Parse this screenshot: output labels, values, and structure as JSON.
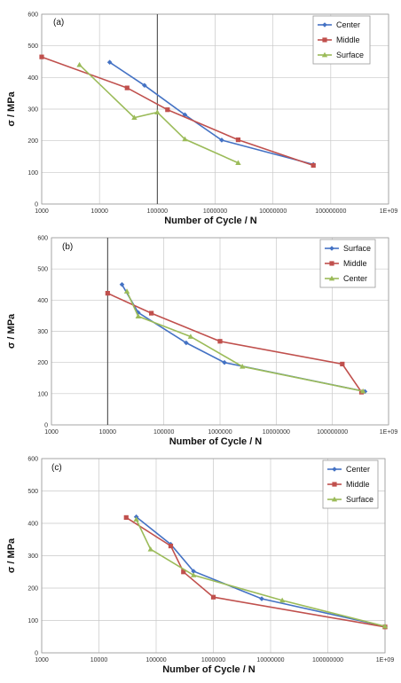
{
  "colors": {
    "blue": "#4472C4",
    "red": "#C0504D",
    "green": "#9BBB59"
  },
  "chart_data": [
    {
      "type": "line",
      "panel_label": "(a)",
      "xscale": "log",
      "xlim": [
        1000,
        1000000000
      ],
      "ylim": [
        0,
        600
      ],
      "x_tick_labels": [
        "1000",
        "10000",
        "100000",
        "1000000",
        "10000000",
        "100000000",
        "1E+09"
      ],
      "y_tick_labels": [
        "0",
        "100",
        "200",
        "300",
        "400",
        "500",
        "600"
      ],
      "xlabel": "Number of Cycle /  N",
      "ylabel": "σ  / MPa",
      "legend_position": "top-right",
      "series": [
        {
          "name": "Center",
          "color": "#4472C4",
          "marker": "diamond",
          "x": [
            15000,
            60000,
            300000,
            1300000,
            50000000
          ],
          "y": [
            448,
            375,
            282,
            202,
            125
          ]
        },
        {
          "name": "Middle",
          "color": "#C0504D",
          "marker": "square",
          "x": [
            1000,
            30000,
            150000,
            2500000,
            50000000
          ],
          "y": [
            465,
            367,
            298,
            203,
            122
          ]
        },
        {
          "name": "Surface",
          "color": "#9BBB59",
          "marker": "triangle",
          "x": [
            4500,
            40000,
            100000,
            300000,
            2500000
          ],
          "y": [
            440,
            273,
            290,
            205,
            130
          ]
        }
      ]
    },
    {
      "type": "line",
      "panel_label": "(b)",
      "xscale": "log",
      "xlim": [
        1000,
        1000000000
      ],
      "ylim": [
        0,
        600
      ],
      "x_tick_labels": [
        "1000",
        "10000",
        "100000",
        "1000000",
        "10000000",
        "100000000",
        "1E+09"
      ],
      "y_tick_labels": [
        "0",
        "100",
        "200",
        "300",
        "400",
        "500",
        "600"
      ],
      "xlabel": "Number of Cycle /  N",
      "ylabel": "σ  / MPa",
      "legend_position": "top-right",
      "series": [
        {
          "name": "Surface",
          "color": "#4472C4",
          "marker": "diamond",
          "x": [
            18000,
            35000,
            250000,
            1200000,
            380000000
          ],
          "y": [
            450,
            360,
            263,
            200,
            107
          ]
        },
        {
          "name": "Middle",
          "color": "#C0504D",
          "marker": "square",
          "x": [
            10000,
            60000,
            1000000,
            150000000,
            330000000
          ],
          "y": [
            422,
            358,
            268,
            195,
            105
          ]
        },
        {
          "name": "Center",
          "color": "#9BBB59",
          "marker": "triangle",
          "x": [
            22000,
            35000,
            300000,
            2500000,
            350000000
          ],
          "y": [
            428,
            348,
            283,
            187,
            108
          ]
        }
      ]
    },
    {
      "type": "line",
      "panel_label": "(c)",
      "xscale": "log",
      "xlim": [
        1000,
        1000000000
      ],
      "ylim": [
        0,
        600
      ],
      "x_tick_labels": [
        "1000",
        "10000",
        "100000",
        "1000000",
        "10000000",
        "100000000",
        "1E+09"
      ],
      "y_tick_labels": [
        "0",
        "100",
        "200",
        "300",
        "400",
        "500",
        "600"
      ],
      "xlabel": "Number of Cycle /  N",
      "ylabel": "σ  / MPa",
      "legend_position": "top-right",
      "series": [
        {
          "name": "Center",
          "color": "#4472C4",
          "marker": "diamond",
          "x": [
            45000,
            180000,
            450000,
            7000000,
            1000000000
          ],
          "y": [
            420,
            335,
            252,
            167,
            82
          ]
        },
        {
          "name": "Middle",
          "color": "#C0504D",
          "marker": "square",
          "x": [
            30000,
            180000,
            300000,
            1000000,
            1000000000
          ],
          "y": [
            418,
            330,
            250,
            172,
            80
          ]
        },
        {
          "name": "Surface",
          "color": "#9BBB59",
          "marker": "triangle",
          "x": [
            45000,
            80000,
            450000,
            16000000,
            1000000000
          ],
          "y": [
            412,
            320,
            240,
            162,
            82
          ]
        }
      ]
    }
  ]
}
